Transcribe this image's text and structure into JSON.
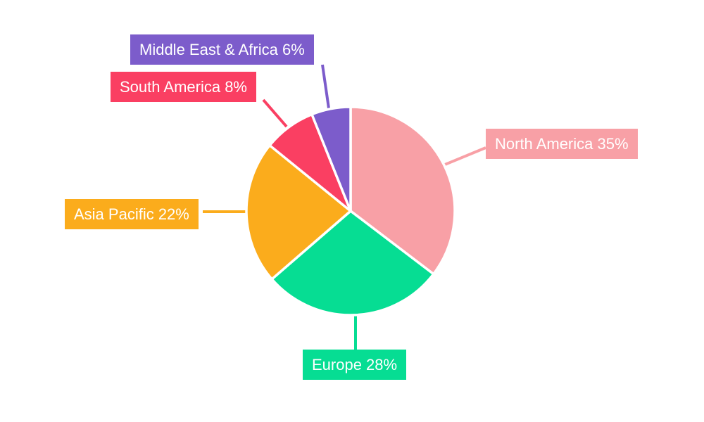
{
  "chart_data": {
    "type": "pie",
    "title": "",
    "unit": "%",
    "direction": "clockwise",
    "start_angle_deg": 0,
    "legend_position": "outside-callouts",
    "background_color": "#ffffff",
    "label_text_color": "#ffffff",
    "slices": [
      {
        "label": "North America",
        "value": 35,
        "display": "North America 35%",
        "color": "#F8A0A6"
      },
      {
        "label": "Europe",
        "value": 28,
        "display": "Europe 28%",
        "color": "#06DD93"
      },
      {
        "label": "Asia Pacific",
        "value": 22,
        "display": "Asia Pacific 22%",
        "color": "#FBAC1C"
      },
      {
        "label": "South America",
        "value": 8,
        "display": "South America 8%",
        "color": "#FA3F62"
      },
      {
        "label": "Middle East & Africa",
        "value": 6,
        "display": "Middle East & Africa 6%",
        "color": "#7C5CCB"
      }
    ]
  }
}
